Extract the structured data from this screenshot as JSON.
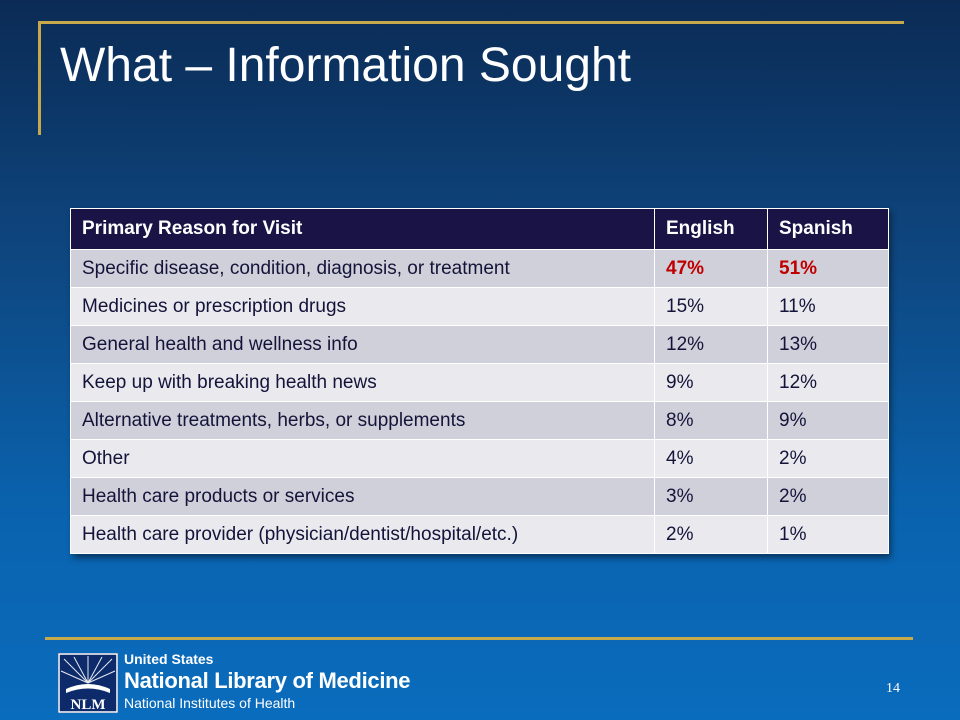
{
  "title": "What – Information Sought",
  "table": {
    "headers": [
      "Primary Reason for Visit",
      "English",
      "Spanish"
    ],
    "rows": [
      [
        "Specific disease, condition, diagnosis, or treatment",
        "47%",
        "51%"
      ],
      [
        "Medicines or prescription drugs",
        "15%",
        "11%"
      ],
      [
        "General health and wellness info",
        "12%",
        "13%"
      ],
      [
        "Keep up with breaking health news",
        "9%",
        "12%"
      ],
      [
        "Alternative treatments, herbs, or supplements",
        "8%",
        "9%"
      ],
      [
        "Other",
        "4%",
        "2%"
      ],
      [
        "Health care products or services",
        "3%",
        "2%"
      ],
      [
        "Health care provider (physician/dentist/hospital/etc.)",
        "2%",
        "1%"
      ]
    ],
    "highlight_color": "#c00000"
  },
  "footer": {
    "logo_text": "NLM",
    "org_line1": "United States",
    "org_line2": "National Library of Medicine",
    "org_line3": "National Institutes of Health",
    "page_number": "14"
  },
  "colors": {
    "accent_gold": "#c7a84a",
    "header_bg": "#1a1446"
  }
}
